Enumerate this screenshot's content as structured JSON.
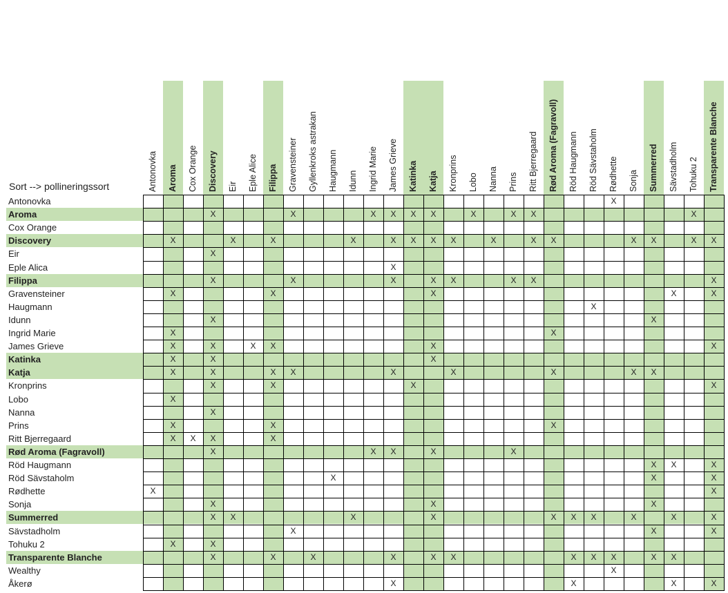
{
  "corner_label": "Sort --> pollineringssort",
  "highlight_color": "#c6e0b4",
  "columns": [
    {
      "label": "Antonovka",
      "bold": false
    },
    {
      "label": "Aroma",
      "bold": true
    },
    {
      "label": "Cox Orange",
      "bold": false
    },
    {
      "label": "Discovery",
      "bold": true
    },
    {
      "label": "Eir",
      "bold": false
    },
    {
      "label": "Eple Alice",
      "bold": false
    },
    {
      "label": "Filippa",
      "bold": true
    },
    {
      "label": "Gravensteiner",
      "bold": false
    },
    {
      "label": "Gyllenkroks astrakan",
      "bold": false
    },
    {
      "label": "Haugmann",
      "bold": false
    },
    {
      "label": "Idunn",
      "bold": false
    },
    {
      "label": "Ingrid Marie",
      "bold": false
    },
    {
      "label": "James Grieve",
      "bold": false
    },
    {
      "label": "Katinka",
      "bold": true
    },
    {
      "label": "Katja",
      "bold": true
    },
    {
      "label": "Kronprins",
      "bold": false
    },
    {
      "label": "Lobo",
      "bold": false
    },
    {
      "label": "Nanna",
      "bold": false
    },
    {
      "label": "Prins",
      "bold": false
    },
    {
      "label": "Ritt Bjerregaard",
      "bold": false
    },
    {
      "label": "Rød Aroma (Fagravoll)",
      "bold": true
    },
    {
      "label": "Röd Haugmann",
      "bold": false
    },
    {
      "label": "Röd Sävstaholm",
      "bold": false
    },
    {
      "label": "Rødhette",
      "bold": false
    },
    {
      "label": "Sonja",
      "bold": false
    },
    {
      "label": "Summerred",
      "bold": true
    },
    {
      "label": "Sävstadholm",
      "bold": false
    },
    {
      "label": "Tohuku 2",
      "bold": false
    },
    {
      "label": "Transparente Blanche",
      "bold": true
    }
  ],
  "mark_symbol": "X",
  "rows": [
    {
      "label": "Antonovka",
      "bold": false,
      "marks": [
        23
      ]
    },
    {
      "label": "Aroma",
      "bold": true,
      "marks": [
        3,
        7,
        11,
        12,
        13,
        14,
        16,
        18,
        19,
        27
      ]
    },
    {
      "label": "Cox Orange",
      "bold": false,
      "marks": []
    },
    {
      "label": "Discovery",
      "bold": true,
      "marks": [
        1,
        4,
        6,
        10,
        12,
        13,
        14,
        15,
        17,
        19,
        20,
        24,
        25,
        27,
        28
      ]
    },
    {
      "label": "Eir",
      "bold": false,
      "marks": [
        3
      ]
    },
    {
      "label": "Eple Alica",
      "bold": false,
      "marks": [
        12
      ]
    },
    {
      "label": "Filippa",
      "bold": true,
      "marks": [
        3,
        7,
        12,
        14,
        15,
        18,
        19,
        28
      ]
    },
    {
      "label": "Gravensteiner",
      "bold": false,
      "marks": [
        1,
        6,
        14,
        26,
        28
      ]
    },
    {
      "label": "Haugmann",
      "bold": false,
      "marks": [
        22
      ]
    },
    {
      "label": "Idunn",
      "bold": false,
      "marks": [
        3,
        25
      ]
    },
    {
      "label": "Ingrid Marie",
      "bold": false,
      "marks": [
        1,
        20
      ]
    },
    {
      "label": "James Grieve",
      "bold": false,
      "marks": [
        1,
        3,
        5,
        6,
        14,
        28
      ]
    },
    {
      "label": "Katinka",
      "bold": true,
      "marks": [
        1,
        3,
        14
      ]
    },
    {
      "label": "Katja",
      "bold": true,
      "marks": [
        1,
        3,
        6,
        7,
        12,
        15,
        20,
        24,
        25
      ]
    },
    {
      "label": "Kronprins",
      "bold": false,
      "marks": [
        3,
        6,
        13,
        28
      ]
    },
    {
      "label": "Lobo",
      "bold": false,
      "marks": [
        1
      ]
    },
    {
      "label": "Nanna",
      "bold": false,
      "marks": [
        3
      ]
    },
    {
      "label": "Prins",
      "bold": false,
      "marks": [
        1,
        6,
        20
      ]
    },
    {
      "label": "Ritt Bjerregaard",
      "bold": false,
      "marks": [
        1,
        2,
        3,
        6
      ]
    },
    {
      "label": "Rød Aroma (Fagravoll)",
      "bold": true,
      "marks": [
        3,
        11,
        12,
        14,
        18
      ]
    },
    {
      "label": "Röd Haugmann",
      "bold": false,
      "marks": [
        25,
        26,
        28
      ]
    },
    {
      "label": "Röd Sävstaholm",
      "bold": false,
      "marks": [
        9,
        25,
        28
      ]
    },
    {
      "label": "Rødhette",
      "bold": false,
      "marks": [
        0,
        28
      ]
    },
    {
      "label": "Sonja",
      "bold": false,
      "marks": [
        3,
        14,
        25
      ]
    },
    {
      "label": "Summerred",
      "bold": true,
      "marks": [
        3,
        4,
        10,
        14,
        20,
        21,
        22,
        24,
        26,
        28
      ]
    },
    {
      "label": "Sävstadholm",
      "bold": false,
      "marks": [
        7,
        25,
        28
      ]
    },
    {
      "label": "Tohuku 2",
      "bold": false,
      "marks": [
        1,
        3
      ]
    },
    {
      "label": "Transparente Blanche",
      "bold": true,
      "marks": [
        3,
        6,
        8,
        12,
        14,
        15,
        21,
        22,
        23,
        25,
        26
      ]
    },
    {
      "label": "Wealthy",
      "bold": false,
      "marks": [
        23
      ]
    },
    {
      "label": "Åkerø",
      "bold": false,
      "marks": [
        12,
        21,
        26,
        28
      ]
    }
  ]
}
